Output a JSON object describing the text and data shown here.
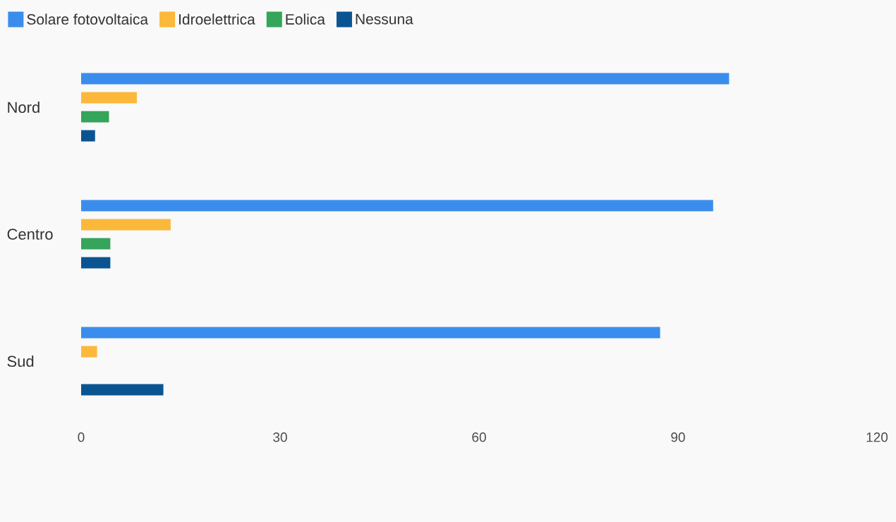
{
  "chart_data": {
    "type": "bar",
    "orientation": "horizontal",
    "legend": "top left",
    "categories": [
      "Nord",
      "Centro",
      "Sud"
    ],
    "series": [
      {
        "name": "Solare fotovoltaica",
        "color": "#3a8ded",
        "values": [
          97.7,
          95.3,
          87.3
        ]
      },
      {
        "name": "Idroelettrica",
        "color": "#fbb83a",
        "values": [
          8.4,
          13.5,
          2.4
        ]
      },
      {
        "name": "Eolica",
        "color": "#34a55a",
        "values": [
          4.2,
          4.4,
          0
        ]
      },
      {
        "name": "Nessuna",
        "color": "#0a5591",
        "values": [
          2.1,
          4.4,
          12.4
        ]
      }
    ],
    "xlim": [
      0,
      120
    ],
    "xticks": [
      0,
      30,
      60,
      90,
      120
    ]
  }
}
